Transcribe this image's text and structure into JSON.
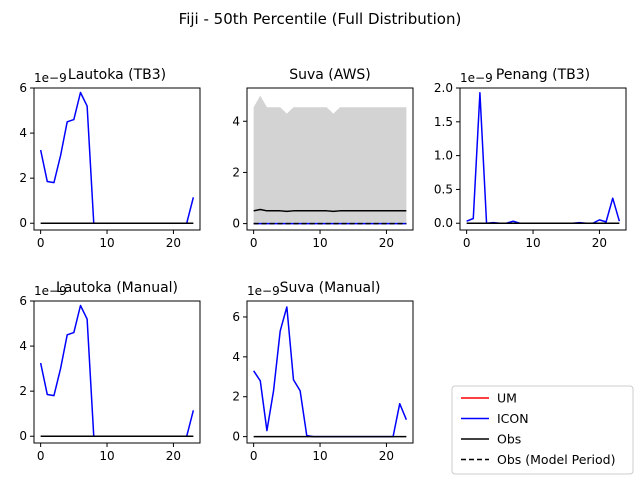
{
  "chart_data": {
    "type": "line",
    "title": "Fiji - 50th Percentile (Full Distribution)",
    "legend": {
      "placement": "bottom-right",
      "entries": [
        {
          "label": "UM",
          "color": "#ff0000",
          "style": "solid"
        },
        {
          "label": "ICON",
          "color": "#0000ff",
          "style": "solid"
        },
        {
          "label": "Obs",
          "color": "#000000",
          "style": "solid"
        },
        {
          "label": "Obs (Model Period)",
          "color": "#000000",
          "style": "dashed"
        }
      ]
    },
    "panels": [
      {
        "title": "Lautoka (TB3)",
        "exponent_label": "1e−9",
        "xlim": [
          -1,
          24
        ],
        "ylim": [
          -0.3,
          6.0
        ],
        "xticks": [
          0,
          10,
          20
        ],
        "yticks": [
          0,
          2,
          4,
          6
        ],
        "ytick_labels": [
          "0",
          "2",
          "4",
          "6"
        ],
        "series": [
          {
            "name": "ICON",
            "color": "#0000ff",
            "style": "solid",
            "x": [
              0,
              1,
              2,
              3,
              4,
              5,
              6,
              7,
              8,
              9,
              10,
              11,
              12,
              13,
              14,
              15,
              16,
              17,
              18,
              19,
              20,
              21,
              22,
              23
            ],
            "y": [
              3.25,
              1.85,
              1.8,
              3.0,
              4.5,
              4.6,
              5.8,
              5.2,
              0,
              0,
              0,
              0,
              0,
              0,
              0,
              0,
              0,
              0,
              0,
              0,
              0,
              0,
              0,
              1.15
            ]
          },
          {
            "name": "Obs",
            "color": "#000000",
            "style": "solid",
            "x": [
              0,
              23
            ],
            "y": [
              0.0,
              0.0
            ]
          }
        ]
      },
      {
        "title": "Suva (AWS)",
        "exponent_label": "",
        "xlim": [
          -1,
          24
        ],
        "ylim": [
          -0.25,
          5.3
        ],
        "xticks": [
          0,
          10,
          20
        ],
        "yticks": [
          0,
          2,
          4
        ],
        "ytick_labels": [
          "0",
          "2",
          "4"
        ],
        "band": {
          "x": [
            0,
            1,
            2,
            3,
            4,
            5,
            6,
            7,
            8,
            9,
            10,
            11,
            12,
            13,
            14,
            15,
            16,
            17,
            18,
            19,
            20,
            21,
            22,
            23
          ],
          "upper": [
            4.55,
            5.0,
            4.55,
            4.55,
            4.55,
            4.3,
            4.55,
            4.55,
            4.55,
            4.55,
            4.55,
            4.55,
            4.3,
            4.55,
            4.55,
            4.55,
            4.55,
            4.55,
            4.55,
            4.55,
            4.55,
            4.55,
            4.55,
            4.55
          ],
          "lower": [
            0,
            0,
            0,
            0,
            0,
            0,
            0,
            0,
            0,
            0,
            0,
            0,
            0,
            0,
            0,
            0,
            0,
            0,
            0,
            0,
            0,
            0,
            0,
            0
          ],
          "color": "#d3d3d3"
        },
        "series": [
          {
            "name": "Obs",
            "color": "#000000",
            "style": "solid",
            "x": [
              0,
              1,
              2,
              3,
              4,
              5,
              6,
              7,
              8,
              9,
              10,
              11,
              12,
              13,
              14,
              15,
              16,
              17,
              18,
              19,
              20,
              21,
              22,
              23
            ],
            "y": [
              0.5,
              0.55,
              0.5,
              0.5,
              0.5,
              0.48,
              0.5,
              0.5,
              0.5,
              0.5,
              0.5,
              0.5,
              0.48,
              0.5,
              0.5,
              0.5,
              0.5,
              0.5,
              0.5,
              0.5,
              0.5,
              0.5,
              0.5,
              0.5
            ]
          },
          {
            "name": "ICON",
            "color": "#0000ff",
            "style": "solid",
            "x": [
              0,
              23
            ],
            "y": [
              0.0,
              0.0
            ]
          },
          {
            "name": "Obs (Model Period)",
            "color": "#000000",
            "style": "dashed",
            "x": [
              0,
              23
            ],
            "y": [
              0.0,
              0.0
            ]
          }
        ]
      },
      {
        "title": "Penang (TB3)",
        "exponent_label": "1e−9",
        "xlim": [
          -1,
          24
        ],
        "ylim": [
          -0.1,
          2.0
        ],
        "xticks": [
          0,
          10,
          20
        ],
        "yticks": [
          0,
          0.5,
          1.0,
          1.5,
          2.0
        ],
        "ytick_labels": [
          "0.0",
          "0.5",
          "1.0",
          "1.5",
          "2.0"
        ],
        "series": [
          {
            "name": "ICON",
            "color": "#0000ff",
            "style": "solid",
            "x": [
              0,
              1,
              2,
              3,
              4,
              5,
              6,
              7,
              8,
              9,
              10,
              11,
              12,
              13,
              14,
              15,
              16,
              17,
              18,
              19,
              20,
              21,
              22,
              23
            ],
            "y": [
              0.03,
              0.07,
              1.93,
              0.0,
              0.01,
              0.0,
              0.0,
              0.03,
              0.0,
              0.0,
              0.0,
              0.0,
              0.0,
              0.0,
              0.0,
              0.0,
              0.0,
              0.01,
              0.0,
              0.0,
              0.05,
              0.02,
              0.37,
              0.03
            ]
          },
          {
            "name": "Obs",
            "color": "#000000",
            "style": "solid",
            "x": [
              0,
              23
            ],
            "y": [
              0.0,
              0.0
            ]
          }
        ]
      },
      {
        "title": "Lautoka (Manual)",
        "exponent_label": "1e−9",
        "xlim": [
          -1,
          24
        ],
        "ylim": [
          -0.3,
          6.0
        ],
        "xticks": [
          0,
          10,
          20
        ],
        "yticks": [
          0,
          2,
          4,
          6
        ],
        "ytick_labels": [
          "0",
          "2",
          "4",
          "6"
        ],
        "series": [
          {
            "name": "ICON",
            "color": "#0000ff",
            "style": "solid",
            "x": [
              0,
              1,
              2,
              3,
              4,
              5,
              6,
              7,
              8,
              9,
              10,
              11,
              12,
              13,
              14,
              15,
              16,
              17,
              18,
              19,
              20,
              21,
              22,
              23
            ],
            "y": [
              3.25,
              1.85,
              1.8,
              3.0,
              4.5,
              4.6,
              5.8,
              5.2,
              0,
              0,
              0,
              0,
              0,
              0,
              0,
              0,
              0,
              0,
              0,
              0,
              0,
              0,
              0,
              1.15
            ]
          },
          {
            "name": "Obs",
            "color": "#000000",
            "style": "solid",
            "x": [
              0,
              23
            ],
            "y": [
              0.0,
              0.0
            ]
          }
        ]
      },
      {
        "title": "Suva (Manual)",
        "exponent_label": "1e−9",
        "xlim": [
          -1,
          24
        ],
        "ylim": [
          -0.32,
          6.8
        ],
        "xticks": [
          0,
          10,
          20
        ],
        "yticks": [
          0,
          2,
          4,
          6
        ],
        "ytick_labels": [
          "0",
          "2",
          "4",
          "6"
        ],
        "series": [
          {
            "name": "ICON",
            "color": "#0000ff",
            "style": "solid",
            "x": [
              0,
              1,
              2,
              3,
              4,
              5,
              6,
              7,
              8,
              9,
              10,
              11,
              12,
              13,
              14,
              15,
              16,
              17,
              18,
              19,
              20,
              21,
              22,
              23
            ],
            "y": [
              3.3,
              2.8,
              0.3,
              2.3,
              5.3,
              6.5,
              2.85,
              2.3,
              0.05,
              0,
              0,
              0,
              0,
              0,
              0,
              0,
              0,
              0,
              0,
              0,
              0,
              0,
              1.65,
              0.85
            ]
          },
          {
            "name": "Obs",
            "color": "#000000",
            "style": "solid",
            "x": [
              0,
              23
            ],
            "y": [
              0.0,
              0.0
            ]
          }
        ]
      }
    ]
  }
}
